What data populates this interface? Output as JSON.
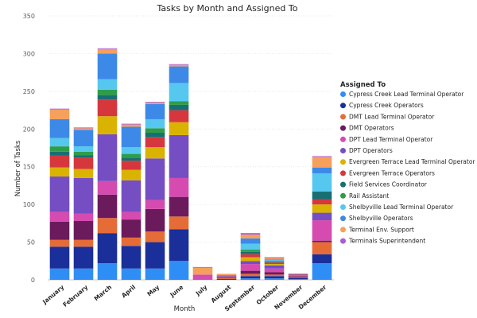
{
  "chart_data": {
    "type": "bar",
    "stacked": true,
    "title": "Tasks by Month and Assigned To",
    "xlabel": "Month",
    "ylabel": "Number of Tasks",
    "ylim": [
      0,
      350
    ],
    "yticks": [
      0,
      50,
      100,
      150,
      200,
      250,
      300,
      350
    ],
    "grid": true,
    "legend_title": "Assigned To",
    "legend_position": "right",
    "categories": [
      "January",
      "February",
      "March",
      "April",
      "May",
      "June",
      "July",
      "August",
      "September",
      "October",
      "November",
      "December"
    ],
    "series": [
      {
        "name": "Cypress Creek Lead Terminal Operator",
        "color": "#2f8ef5",
        "values": [
          15,
          15,
          22,
          15,
          15,
          25,
          0,
          0,
          2,
          2,
          1,
          22
        ]
      },
      {
        "name": "Cypress Creek Operators",
        "color": "#1a2f99",
        "values": [
          29,
          29,
          40,
          30,
          35,
          42,
          0,
          1,
          3,
          3,
          2,
          12
        ]
      },
      {
        "name": "DMT Lead Terminal Operator",
        "color": "#e66c37",
        "values": [
          9,
          9,
          20,
          11,
          14,
          17,
          0,
          1,
          3,
          2,
          1,
          16
        ]
      },
      {
        "name": "DMT Operators",
        "color": "#6b1b5c",
        "values": [
          24,
          25,
          31,
          24,
          30,
          26,
          0,
          1,
          4,
          3,
          1,
          2
        ]
      },
      {
        "name": "DPT Lead Terminal Operator",
        "color": "#d64bb0",
        "values": [
          13,
          10,
          18,
          10,
          12,
          25,
          7,
          1,
          9,
          5,
          1,
          27
        ]
      },
      {
        "name": "DPT Operators",
        "color": "#744ec2",
        "values": [
          47,
          47,
          62,
          42,
          55,
          57,
          0,
          1,
          4,
          4,
          1,
          10
        ]
      },
      {
        "name": "Evergreen Terrace Lead Terminal Operator",
        "color": "#d9b300",
        "values": [
          12,
          12,
          24,
          14,
          15,
          17,
          0,
          0,
          5,
          2,
          0,
          11
        ]
      },
      {
        "name": "Evergreen Terrace Operators",
        "color": "#d6373d",
        "values": [
          16,
          15,
          22,
          12,
          13,
          16,
          0,
          1,
          4,
          2,
          1,
          7
        ]
      },
      {
        "name": "Field Services Coordinator",
        "color": "#176f73",
        "values": [
          5,
          3,
          6,
          4,
          6,
          7,
          0,
          0,
          3,
          1,
          0,
          10
        ]
      },
      {
        "name": "Rail Assistant",
        "color": "#2f9c4a",
        "values": [
          7,
          5,
          7,
          5,
          6,
          5,
          0,
          0,
          3,
          1,
          0,
          0
        ]
      },
      {
        "name": "Shelbyville Lead Terminal Operator",
        "color": "#56c8f0",
        "values": [
          11,
          7,
          14,
          9,
          12,
          24,
          0,
          0,
          8,
          1,
          0,
          24
        ]
      },
      {
        "name": "Shelbyville Operators",
        "color": "#3d89e8",
        "values": [
          25,
          22,
          34,
          27,
          20,
          22,
          0,
          0,
          7,
          1,
          0,
          8
        ]
      },
      {
        "name": "Terminal Env. Support",
        "color": "#f5a05c",
        "values": [
          13,
          2,
          6,
          3,
          2,
          2,
          9,
          2,
          5,
          2,
          0,
          14
        ]
      },
      {
        "name": "Terminals Superintendent",
        "color": "#b05bd6",
        "values": [
          1,
          1,
          1,
          1,
          1,
          1,
          1,
          0,
          2,
          1,
          0,
          1
        ]
      }
    ]
  }
}
